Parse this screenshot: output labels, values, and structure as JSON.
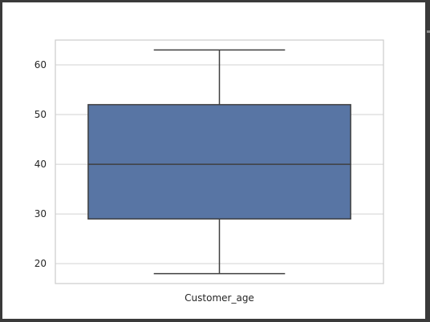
{
  "colors": {
    "box_fill": "#5875a4",
    "line": "#3f3f3f",
    "grid": "#d2d2d2",
    "axes_border": "#cccccc"
  },
  "chart_data": {
    "type": "box",
    "categories": [
      "Customer_age"
    ],
    "series": [
      {
        "whisker_low": 18,
        "q1": 29,
        "median": 40,
        "q3": 52,
        "whisker_high": 63
      }
    ],
    "xlabel": "",
    "ylabel": "",
    "ylim": [
      16,
      65
    ],
    "yticks": [
      20,
      30,
      40,
      50,
      60
    ],
    "grid": true
  }
}
